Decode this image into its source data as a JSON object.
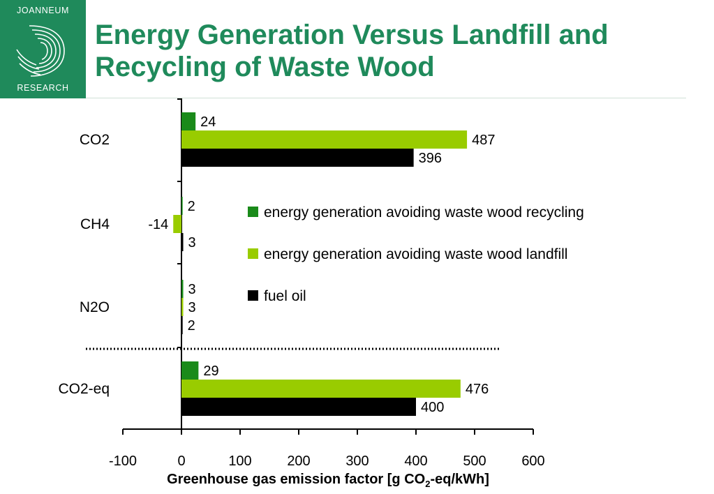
{
  "logo": {
    "top_text": "JOANNEUM",
    "bottom_text": "RESEARCH",
    "brand_color": "#1f8a5b"
  },
  "title": "Energy Generation Versus Landfill and Recycling of Waste Wood",
  "chart_data": {
    "type": "bar",
    "orientation": "horizontal",
    "categories": [
      "CO2",
      "CH4",
      "N2O",
      "CO2-eq"
    ],
    "series": [
      {
        "name": "energy generation avoiding waste wood recycling",
        "color": "#1a8a1a",
        "values": [
          24,
          2,
          3,
          29
        ]
      },
      {
        "name": "energy generation avoiding waste wood landfill",
        "color": "#99cc00",
        "values": [
          487,
          -14,
          3,
          476
        ]
      },
      {
        "name": "fuel oil",
        "color": "#000000",
        "values": [
          396,
          3,
          2,
          400
        ]
      }
    ],
    "xlim": [
      -100,
      600
    ],
    "xticks": [
      -100,
      0,
      100,
      200,
      300,
      400,
      500,
      600
    ],
    "xlabel_parts": [
      "Greenhouse gas emission factor [g CO",
      "2",
      "-eq/kWh]"
    ],
    "legend_position": "right",
    "separator": "dotted line between N2O and CO2-eq",
    "grid": false
  }
}
